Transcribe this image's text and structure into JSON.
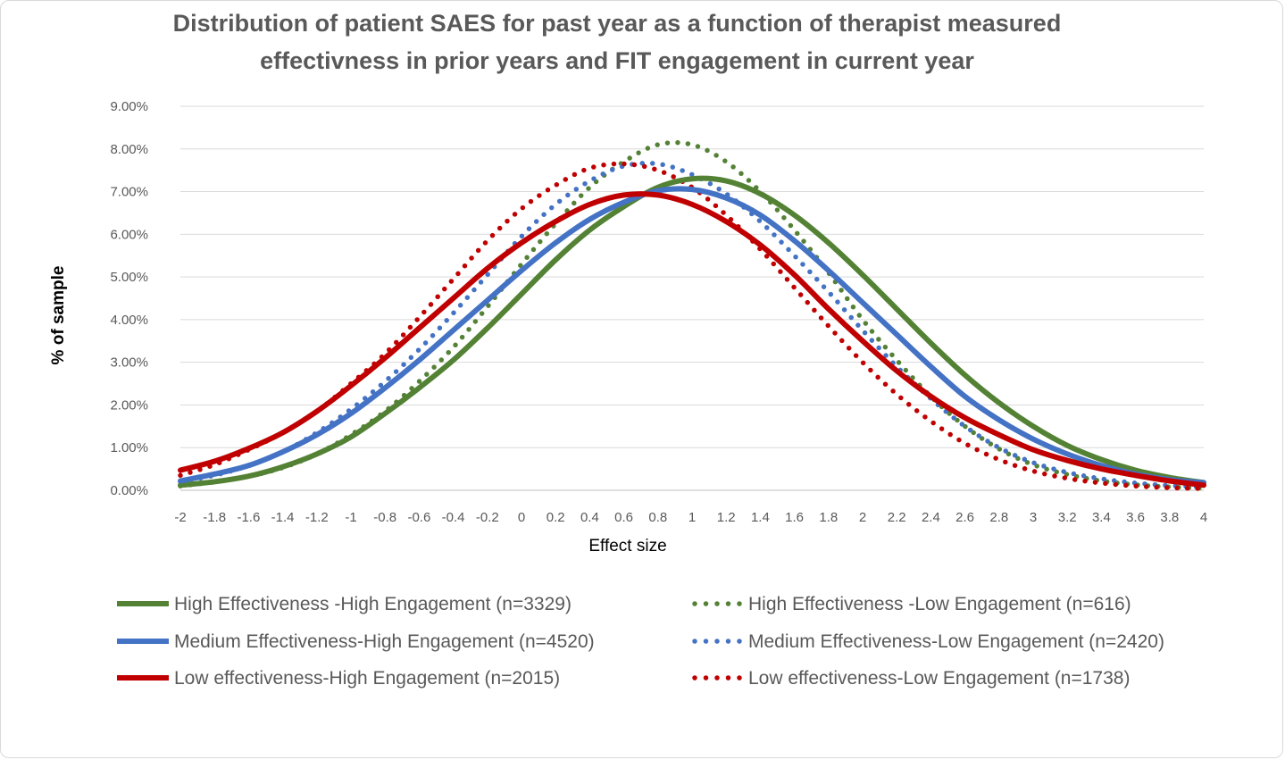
{
  "chart_data": {
    "type": "line",
    "title_lines": [
      "Distribution of patient SAES for past year  as a function of therapist measured",
      "effectivness in prior years and FIT engagement in current year"
    ],
    "xlabel": "Effect size",
    "ylabel": "% of sample",
    "x_tick_labels": [
      "-2",
      "-1.8",
      "-1.6",
      "-1.4",
      "-1.2",
      "-1",
      "-0.8",
      "-0.6",
      "-0.4",
      "-0.2",
      "0",
      "0.2",
      "0.4",
      "0.6",
      "0.8",
      "1",
      "1.2",
      "1.4",
      "1.6",
      "1.8",
      "2",
      "2.2",
      "2.4",
      "2.6",
      "2.8",
      "3",
      "3.2",
      "3.4",
      "3.6",
      "3.8",
      "4"
    ],
    "y_tick_labels": [
      "0.00%",
      "1.00%",
      "2.00%",
      "3.00%",
      "4.00%",
      "5.00%",
      "6.00%",
      "7.00%",
      "8.00%",
      "9.00%"
    ],
    "ylim": [
      0,
      9
    ],
    "xlim": [
      -2,
      4
    ],
    "grid": true,
    "legend_position": "bottom",
    "series": [
      {
        "name": "High Effectiveness -High Engagement (n=3329)",
        "color": "#548235",
        "style": "solid",
        "x": [
          -2,
          -1.8,
          -1.6,
          -1.4,
          -1.2,
          -1,
          -0.8,
          -0.6,
          -0.4,
          -0.2,
          0,
          0.2,
          0.4,
          0.6,
          0.8,
          1,
          1.2,
          1.4,
          1.6,
          1.8,
          2,
          2.2,
          2.4,
          2.6,
          2.8,
          3,
          3.2,
          3.4,
          3.6,
          3.8,
          4
        ],
        "y": [
          0.12,
          0.2,
          0.33,
          0.55,
          0.85,
          1.25,
          1.8,
          2.4,
          3.05,
          3.8,
          4.6,
          5.4,
          6.1,
          6.65,
          7.1,
          7.3,
          7.25,
          6.95,
          6.45,
          5.8,
          5.05,
          4.25,
          3.45,
          2.7,
          2.05,
          1.5,
          1.05,
          0.72,
          0.47,
          0.3,
          0.18
        ]
      },
      {
        "name": "High Effectiveness -Low Engagement (n=616)",
        "color": "#548235",
        "style": "dotted",
        "x": [
          -2,
          -1.8,
          -1.6,
          -1.4,
          -1.2,
          -1,
          -0.8,
          -0.6,
          -0.4,
          -0.2,
          0,
          0.2,
          0.4,
          0.6,
          0.8,
          1,
          1.2,
          1.4,
          1.6,
          1.8,
          2,
          2.2,
          2.4,
          2.6,
          2.8,
          3,
          3.2,
          3.4,
          3.6,
          3.8,
          4
        ],
        "y": [
          0.1,
          0.2,
          0.33,
          0.53,
          0.85,
          1.3,
          1.85,
          2.55,
          3.35,
          4.3,
          5.3,
          6.25,
          7.1,
          7.7,
          8.1,
          8.1,
          7.7,
          7.0,
          6.1,
          5.1,
          4.0,
          3.05,
          2.2,
          1.5,
          0.97,
          0.6,
          0.37,
          0.22,
          0.13,
          0.08,
          0.05
        ]
      },
      {
        "name": "Medium Effectiveness-High Engagement (n=4520)",
        "color": "#4472c4",
        "style": "solid",
        "x": [
          -2,
          -1.8,
          -1.6,
          -1.4,
          -1.2,
          -1,
          -0.8,
          -0.6,
          -0.4,
          -0.2,
          0,
          0.2,
          0.4,
          0.6,
          0.8,
          1,
          1.2,
          1.4,
          1.6,
          1.8,
          2,
          2.2,
          2.4,
          2.6,
          2.8,
          3,
          3.2,
          3.4,
          3.6,
          3.8,
          4
        ],
        "y": [
          0.22,
          0.38,
          0.58,
          0.9,
          1.3,
          1.8,
          2.4,
          3.05,
          3.75,
          4.45,
          5.15,
          5.8,
          6.35,
          6.75,
          7.02,
          7.05,
          6.85,
          6.45,
          5.85,
          5.15,
          4.4,
          3.65,
          2.9,
          2.2,
          1.65,
          1.2,
          0.85,
          0.58,
          0.38,
          0.25,
          0.18
        ]
      },
      {
        "name": "Medium Effectiveness-Low Engagement (n=2420)",
        "color": "#4472c4",
        "style": "dotted",
        "x": [
          -2,
          -1.8,
          -1.6,
          -1.4,
          -1.2,
          -1,
          -0.8,
          -0.6,
          -0.4,
          -0.2,
          0,
          0.2,
          0.4,
          0.6,
          0.8,
          1,
          1.2,
          1.4,
          1.6,
          1.8,
          2,
          2.2,
          2.4,
          2.6,
          2.8,
          3,
          3.2,
          3.4,
          3.6,
          3.8,
          4
        ],
        "y": [
          0.2,
          0.35,
          0.58,
          0.9,
          1.35,
          1.9,
          2.55,
          3.3,
          4.15,
          5.05,
          5.95,
          6.7,
          7.25,
          7.6,
          7.65,
          7.4,
          6.95,
          6.3,
          5.5,
          4.65,
          3.75,
          2.9,
          2.15,
          1.5,
          1.0,
          0.65,
          0.42,
          0.27,
          0.17,
          0.11,
          0.08
        ]
      },
      {
        "name": "Low effectiveness-High Engagement (n=2015)",
        "color": "#c00000",
        "style": "solid",
        "x": [
          -2,
          -1.8,
          -1.6,
          -1.4,
          -1.2,
          -1,
          -0.8,
          -0.6,
          -0.4,
          -0.2,
          0,
          0.2,
          0.4,
          0.6,
          0.8,
          1,
          1.2,
          1.4,
          1.6,
          1.8,
          2,
          2.2,
          2.4,
          2.6,
          2.8,
          3,
          3.2,
          3.4,
          3.6,
          3.8,
          4
        ],
        "y": [
          0.47,
          0.68,
          0.98,
          1.35,
          1.85,
          2.45,
          3.1,
          3.8,
          4.5,
          5.2,
          5.8,
          6.3,
          6.7,
          6.92,
          6.92,
          6.7,
          6.3,
          5.75,
          5.05,
          4.25,
          3.5,
          2.8,
          2.2,
          1.7,
          1.3,
          0.95,
          0.7,
          0.5,
          0.35,
          0.22,
          0.12
        ]
      },
      {
        "name": "Low effectiveness-Low Engagement (n=1738)",
        "color": "#c00000",
        "style": "dotted",
        "x": [
          -2,
          -1.8,
          -1.6,
          -1.4,
          -1.2,
          -1,
          -0.8,
          -0.6,
          -0.4,
          -0.2,
          0,
          0.2,
          0.4,
          0.6,
          0.8,
          1,
          1.2,
          1.4,
          1.6,
          1.8,
          2,
          2.2,
          2.4,
          2.6,
          2.8,
          3,
          3.2,
          3.4,
          3.6,
          3.8,
          4
        ],
        "y": [
          0.35,
          0.6,
          0.95,
          1.35,
          1.85,
          2.5,
          3.2,
          4.05,
          4.95,
          5.85,
          6.6,
          7.15,
          7.55,
          7.65,
          7.5,
          7.1,
          6.45,
          5.65,
          4.75,
          3.85,
          3.0,
          2.25,
          1.62,
          1.1,
          0.72,
          0.45,
          0.28,
          0.17,
          0.1,
          0.06,
          0.04
        ]
      }
    ]
  }
}
